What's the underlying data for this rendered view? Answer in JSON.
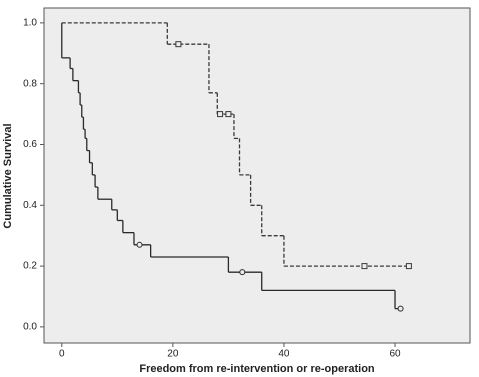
{
  "chart_data": {
    "type": "step",
    "x_label": "Freedom from re-intervention or re-operation",
    "y_label": "Cumulative Survival",
    "xlim": [
      -3.2,
      73.5
    ],
    "ylim": [
      -0.053,
      1.049
    ],
    "xticks": [
      0,
      20,
      40,
      60
    ],
    "yticks": [
      {
        "value": 0,
        "label": "0.0"
      },
      {
        "value": 0.2,
        "label": "0.2"
      },
      {
        "value": 0.4,
        "label": "0.4"
      },
      {
        "value": 0.6,
        "label": "0.6"
      },
      {
        "value": 0.8,
        "label": "0.8"
      },
      {
        "value": 1,
        "label": "1.0"
      }
    ],
    "series": [
      {
        "color": "#2a2a2a",
        "dash": false,
        "marker": "circle",
        "x": [
          0,
          0,
          1.5,
          2,
          3,
          3.3,
          3.6,
          3.9,
          4.2,
          4.5,
          5,
          5.5,
          6,
          6.5,
          9,
          10,
          11,
          13,
          16,
          30,
          36,
          60,
          61
        ],
        "values": [
          1.0,
          0.885,
          0.85,
          0.81,
          0.77,
          0.73,
          0.69,
          0.65,
          0.62,
          0.58,
          0.54,
          0.5,
          0.46,
          0.42,
          0.385,
          0.35,
          0.31,
          0.27,
          0.23,
          0.18,
          0.12,
          0.06,
          0.06
        ],
        "censor_x": [
          14,
          32.5,
          61
        ],
        "censor_values": [
          0.27,
          0.18,
          0.06
        ]
      },
      {
        "color": "#3a3a3a",
        "dash": true,
        "marker": "square",
        "x": [
          0,
          19,
          26.5,
          28,
          31,
          32,
          34,
          36,
          40,
          62.5
        ],
        "values": [
          1.0,
          0.93,
          0.77,
          0.7,
          0.62,
          0.5,
          0.4,
          0.3,
          0.2,
          0.2
        ],
        "censor_x": [
          21,
          28.5,
          30,
          54.5,
          62.5
        ],
        "censor_values": [
          0.93,
          0.7,
          0.7,
          0.2,
          0.2
        ]
      }
    ]
  }
}
